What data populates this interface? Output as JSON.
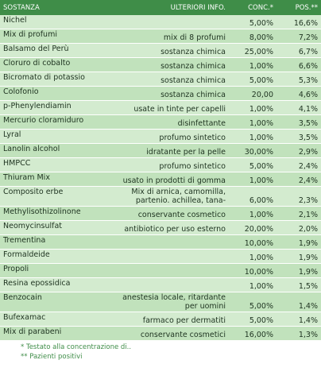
{
  "table": {
    "header": [
      "SOSTANZA",
      "ULTERIORI INFO.",
      "CONC.*",
      "POS.**"
    ],
    "rows": [
      {
        "sostanza": "Nichel",
        "conc": "5,00%",
        "pos": "16,6%"
      },
      {
        "sostanza": "Mix di profumi",
        "info": "mix di 8 profumi",
        "conc": "8,00%",
        "pos": "7,2%"
      },
      {
        "sostanza": "Balsamo del Perù",
        "info": "sostanza chimica",
        "conc": "25,00%",
        "pos": "6,7%"
      },
      {
        "sostanza": "Cloruro di cobalto",
        "info": "sostanza chimica",
        "conc": "1,00%",
        "pos": "6,6%"
      },
      {
        "sostanza": "Bicromato di potassio",
        "info": "sostanza chimica",
        "conc": "5,00%",
        "pos": "5,3%"
      },
      {
        "sostanza": "Colofonio",
        "info": "sostanza chimica",
        "conc": "20,00",
        "pos": "4,6%"
      },
      {
        "sostanza": "p-Phenylendiamin",
        "info": "usate in tinte per capelli",
        "conc": "1,00%",
        "pos": "4,1%"
      },
      {
        "sostanza": "Mercurio cloramiduro",
        "info": "disinfettante",
        "conc": "1,00%",
        "pos": "3,5%"
      },
      {
        "sostanza": "Lyral",
        "info": "profumo sintetico",
        "conc": "1,00%",
        "pos": "3,5%"
      },
      {
        "sostanza": "Lanolin alcohol",
        "info": "idratante per la pelle",
        "conc": "30,00%",
        "pos": "2,9%"
      },
      {
        "sostanza": "HMPCC",
        "info": "profumo sintetico",
        "conc": "5,00%",
        "pos": "2,4%"
      },
      {
        "sostanza": "Thiuram Mix",
        "info": "usato in prodotti di gomma",
        "conc": "1,00%",
        "pos": "2,4%"
      },
      {
        "sostanza": "Composito erbe",
        "info": "Mix di arnica, camomilla, partenio. achillea, tana-",
        "conc": "6,00%",
        "pos": "2,3%"
      },
      {
        "sostanza": "Methylisothizolinone",
        "info": "conservante cosmetico",
        "conc": "1,00%",
        "pos": "2,1%"
      },
      {
        "sostanza": "Neomycinsulfat",
        "info": "antibiotico per uso esterno",
        "conc": "20,00%",
        "pos": "2,0%"
      },
      {
        "sostanza": "Trementina",
        "conc": "10,00%",
        "pos": "1,9%"
      },
      {
        "sostanza": "Formaldeide",
        "conc": "1,00%",
        "pos": "1,9%"
      },
      {
        "sostanza": "Propoli",
        "conc": "10,00%",
        "pos": "1,9%"
      },
      {
        "sostanza": "Resina epossidica",
        "conc": "1,00%",
        "pos": "1,5%"
      },
      {
        "sostanza": "Benzocain",
        "info": "anestesia locale, ritardante per uomini",
        "conc": "5,00%",
        "pos": "1,4%"
      },
      {
        "sostanza": "Bufexamac",
        "info": "farmaco per dermatiti",
        "conc": "5,00%",
        "pos": "1,4%"
      },
      {
        "sostanza": "Mix di parabeni",
        "info": "conservante cosmetici",
        "conc": "16,00%",
        "pos": "1,3%"
      }
    ]
  },
  "footnotes": [
    "* Testato alla concentrazione di..",
    "** Pazienti positivi"
  ]
}
